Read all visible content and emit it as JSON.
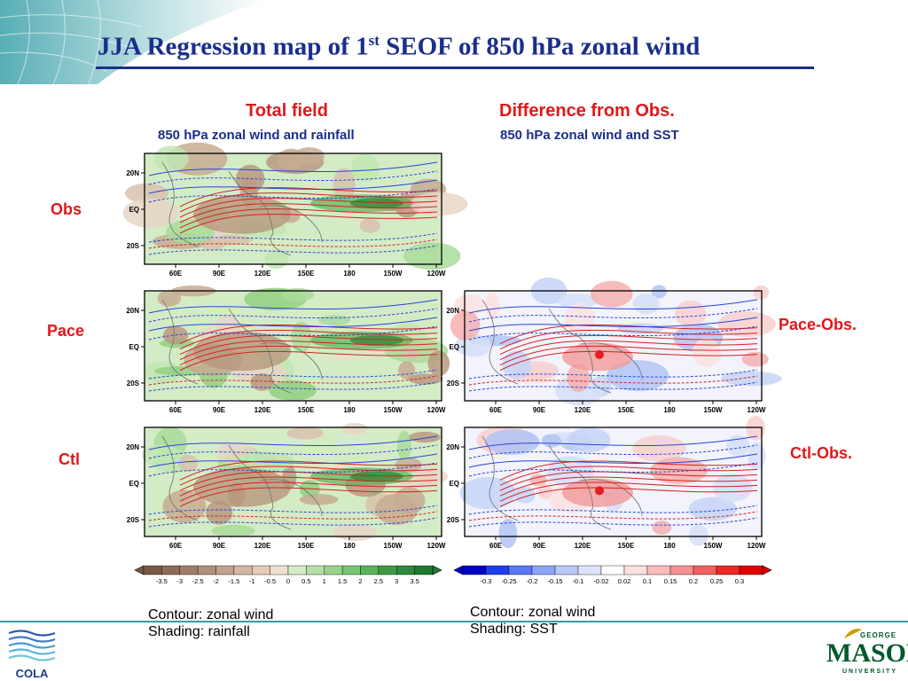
{
  "title": {
    "main": "JJA Regression map of 1",
    "sup": "st",
    "rest": " SEOF of 850 hPa zonal wind"
  },
  "columns": {
    "total": {
      "heading": "Total field",
      "sub": "850 hPa zonal wind and rainfall"
    },
    "diff": {
      "heading": "Difference from Obs.",
      "sub": "850 hPa zonal wind and SST"
    }
  },
  "rows": {
    "obs": "Obs",
    "pace": "Pace",
    "ctl": "Ctl"
  },
  "diff_labels": {
    "pace": "Pace-Obs.",
    "ctl": "Ctl-Obs."
  },
  "axes": {
    "lat_ticks": [
      "20N",
      "EQ",
      "20S"
    ],
    "lon_ticks": [
      "60E",
      "90E",
      "120E",
      "150E",
      "180",
      "150W",
      "120W"
    ]
  },
  "colorbars": {
    "rainfall": {
      "labels": [
        "-3.5",
        "-3",
        "-2.5",
        "-2",
        "-1.5",
        "-1",
        "-0.5",
        "0",
        "0.5",
        "1",
        "1.5",
        "2",
        "2.5",
        "3",
        "3.5"
      ],
      "colors": [
        "#7b5a45",
        "#8d6b55",
        "#9f7d66",
        "#b08f78",
        "#c1a28c",
        "#d2b6a1",
        "#e3cbb8",
        "#f0e0d0",
        "#d4ecc6",
        "#b7e0a9",
        "#98d28c",
        "#79c472",
        "#5cb15b",
        "#3f9a46",
        "#2d8a3a",
        "#1e7a30"
      ]
    },
    "sst": {
      "labels": [
        "-0.3",
        "-0.25",
        "-0.2",
        "-0.15",
        "-0.1",
        "-0.02",
        "0.02",
        "0.1",
        "0.15",
        "0.2",
        "0.25",
        "0.3"
      ],
      "colors": [
        "#0000c8",
        "#1e3cf0",
        "#5a78f5",
        "#8ca5f8",
        "#b9c8fb",
        "#dde4fd",
        "#ffffff",
        "#fde0e0",
        "#fbbcbc",
        "#f89090",
        "#f46060",
        "#ee2828",
        "#e00000"
      ]
    }
  },
  "notes": {
    "left": {
      "line1": "Contour: zonal wind",
      "line2": "Shading: rainfall"
    },
    "right": {
      "line1": "Contour: zonal wind",
      "line2": "Shading: SST"
    }
  },
  "logos": {
    "cola": "COLA",
    "gmu_top": "GEORGE",
    "gmu_main": "MASON",
    "gmu_bottom": "UNIVERSITY"
  }
}
